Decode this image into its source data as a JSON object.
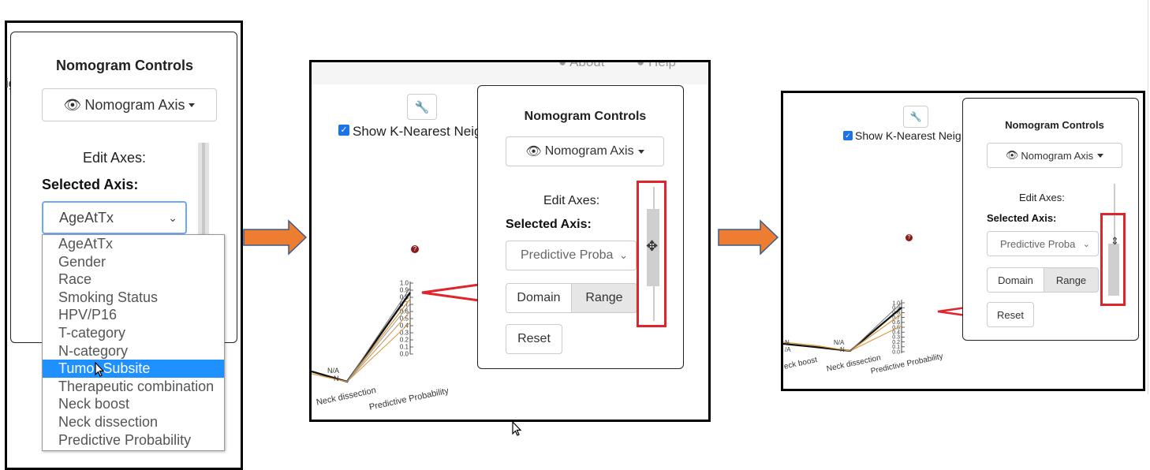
{
  "panel1": {
    "title": "Nomogram Controls",
    "axis_button": "Nomogram Axis",
    "edit_axes": "Edit Axes:",
    "selected_axis_label": "Selected Axis:",
    "selected_value": "AgeAtTx",
    "clipped_text": "ig",
    "options": [
      "AgeAtTx",
      "Gender",
      "Race",
      "Smoking Status",
      "HPV/P16",
      "T-category",
      "N-category",
      "Tumor Subsite",
      "Therapeutic combination",
      "Neck boost",
      "Neck dissection",
      "Predictive Probability"
    ],
    "highlighted_option": "Tumor Subsite"
  },
  "panel2": {
    "header_links": [
      "About",
      "Help"
    ],
    "knn_label": "Show K-Nearest Neig",
    "title": "Nomogram Controls",
    "axis_button": "Nomogram Axis",
    "edit_axes": "Edit Axes:",
    "selected_axis_label": "Selected Axis:",
    "selected_value": "Predictive Proba",
    "domain_label": "Domain",
    "range_label": "Range",
    "reset_label": "Reset",
    "axis_labels": [
      "Neck dissection",
      "Predictive Probability"
    ],
    "na_labels": [
      "N/A",
      "N"
    ],
    "ticks": [
      "1.0",
      "0.9",
      "0.8",
      "0.7",
      "0.6",
      "0.5",
      "0.4",
      "0.3",
      "0.2",
      "0.1",
      "0.0"
    ]
  },
  "panel3": {
    "knn_label": "Show K-Nearest Neig",
    "title": "Nomogram Controls",
    "axis_button": "Nomogram Axis",
    "edit_axes": "Edit Axes:",
    "selected_axis_label": "Selected Axis:",
    "selected_value": "Predictive Proba",
    "domain_label": "Domain",
    "range_label": "Range",
    "reset_label": "Reset",
    "axis_labels": [
      "eck boost",
      "Neck dissection",
      "Predictive Probability"
    ],
    "na_labels": [
      "N/A",
      "N"
    ],
    "left_labels": [
      "N",
      "/A"
    ],
    "ticks": [
      "1.0",
      "0.9",
      "0.8",
      "0.7",
      "0.6",
      "0.5",
      "0.4",
      "0.3",
      "0.2",
      "0.1",
      "0.0"
    ]
  },
  "colors": {
    "arrow_orange": "#ed7d31",
    "highlight_red": "#e0242b",
    "selection_blue": "#1e90ff",
    "help_dot": "#8b1a1a",
    "line_orange": "#d9963c"
  }
}
